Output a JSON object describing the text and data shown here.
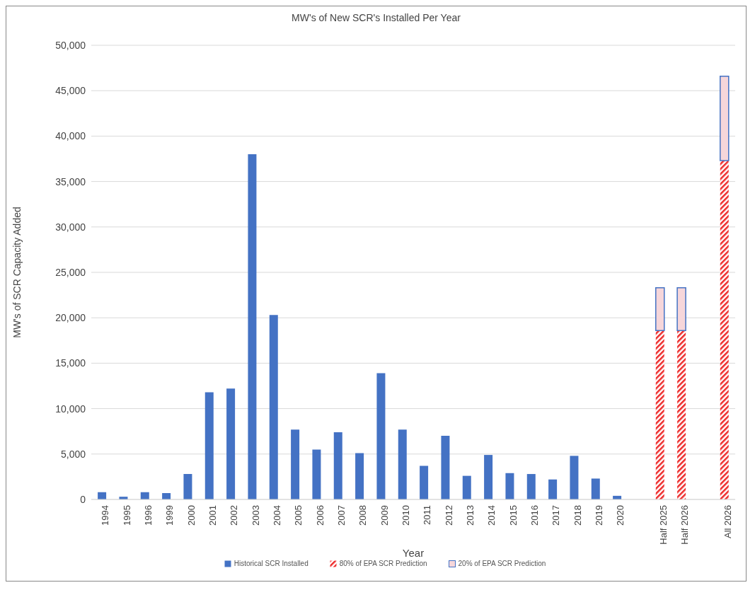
{
  "chart_data": {
    "type": "bar",
    "title": "MW's of New SCR's Installed Per Year",
    "xlabel": "Year",
    "ylabel": "MW's of SCR Capacity Added",
    "categories": [
      "1994",
      "1995",
      "1996",
      "1999",
      "2000",
      "2001",
      "2002",
      "2003",
      "2004",
      "2005",
      "2006",
      "2007",
      "2008",
      "2009",
      "2010",
      "2011",
      "2012",
      "2013",
      "2014",
      "2015",
      "2016",
      "2017",
      "2018",
      "2019",
      "2020",
      null,
      "Half 2025",
      "Half 2026",
      null,
      "All 2026"
    ],
    "stacked": true,
    "series": [
      {
        "name": "Historical SCR Installed",
        "color": "#4472c4",
        "values": [
          800,
          300,
          800,
          700,
          2800,
          11800,
          12200,
          38000,
          20300,
          7700,
          5500,
          7400,
          5100,
          13900,
          7700,
          3700,
          7000,
          2600,
          4900,
          2900,
          2800,
          2200,
          4800,
          2300,
          400,
          null,
          null,
          null,
          null,
          null
        ]
      },
      {
        "name": "80% of EPA SCR Prediction",
        "color": "#ee2a2a",
        "values": [
          null,
          null,
          null,
          null,
          null,
          null,
          null,
          null,
          null,
          null,
          null,
          null,
          null,
          null,
          null,
          null,
          null,
          null,
          null,
          null,
          null,
          null,
          null,
          null,
          null,
          null,
          18600,
          18600,
          null,
          37300
        ]
      },
      {
        "name": "20% of EPA SCR Prediction",
        "color": "#4472c4",
        "values": [
          null,
          null,
          null,
          null,
          null,
          null,
          null,
          null,
          null,
          null,
          null,
          null,
          null,
          null,
          null,
          null,
          null,
          null,
          null,
          null,
          null,
          null,
          null,
          null,
          null,
          null,
          4700,
          4700,
          null,
          9300
        ]
      }
    ],
    "ylim": [
      0,
      50000
    ],
    "yticks": [
      0,
      {
        "value": 5000,
        "label": "5,000"
      },
      {
        "value": 10000,
        "label": "10,000"
      },
      {
        "value": 15000,
        "label": "15,000"
      },
      {
        "value": 20000,
        "label": "20,000"
      },
      {
        "value": 25000,
        "label": "25,000"
      },
      {
        "value": 30000,
        "label": "30,000"
      },
      {
        "value": 35000,
        "label": "35,000"
      },
      {
        "value": 40000,
        "label": "40,000"
      },
      {
        "value": 45000,
        "label": "45,000"
      },
      {
        "value": 50000,
        "label": "50,000"
      }
    ],
    "grid": "y",
    "legend": "bottom"
  }
}
